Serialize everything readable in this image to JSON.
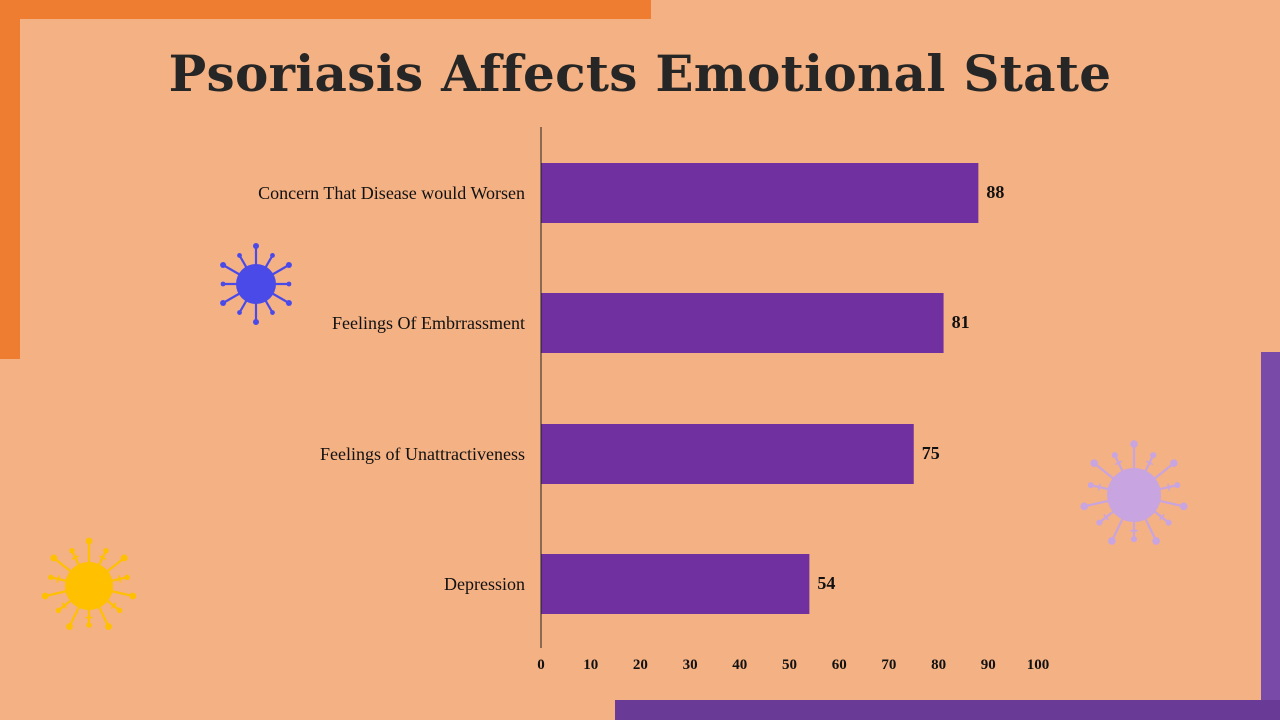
{
  "slide": {
    "title": "Psoriasis Affects Emotional State",
    "colors": {
      "background": "#f4b183",
      "frame_orange": "#ee7d31",
      "frame_purple": "#7a4aa8",
      "bar": "#7030a0",
      "virus_blue": "#4a4ae8",
      "virus_yellow": "#ffc000",
      "virus_lavender": "#c8a4e0"
    },
    "icons": [
      "virus-icon-blue",
      "virus-icon-yellow",
      "virus-icon-lavender"
    ]
  },
  "chart_data": {
    "type": "bar",
    "orientation": "horizontal",
    "categories": [
      "Concern That Disease would Worsen",
      "Feelings Of Embrrassment",
      "Feelings of Unattractiveness",
      "Depression"
    ],
    "values": [
      88,
      81,
      75,
      54
    ],
    "xlim": [
      0,
      100
    ],
    "xticks": [
      0,
      10,
      20,
      30,
      40,
      50,
      60,
      70,
      80,
      90,
      100
    ],
    "data_labels": true,
    "grid": false,
    "legend": "none"
  }
}
